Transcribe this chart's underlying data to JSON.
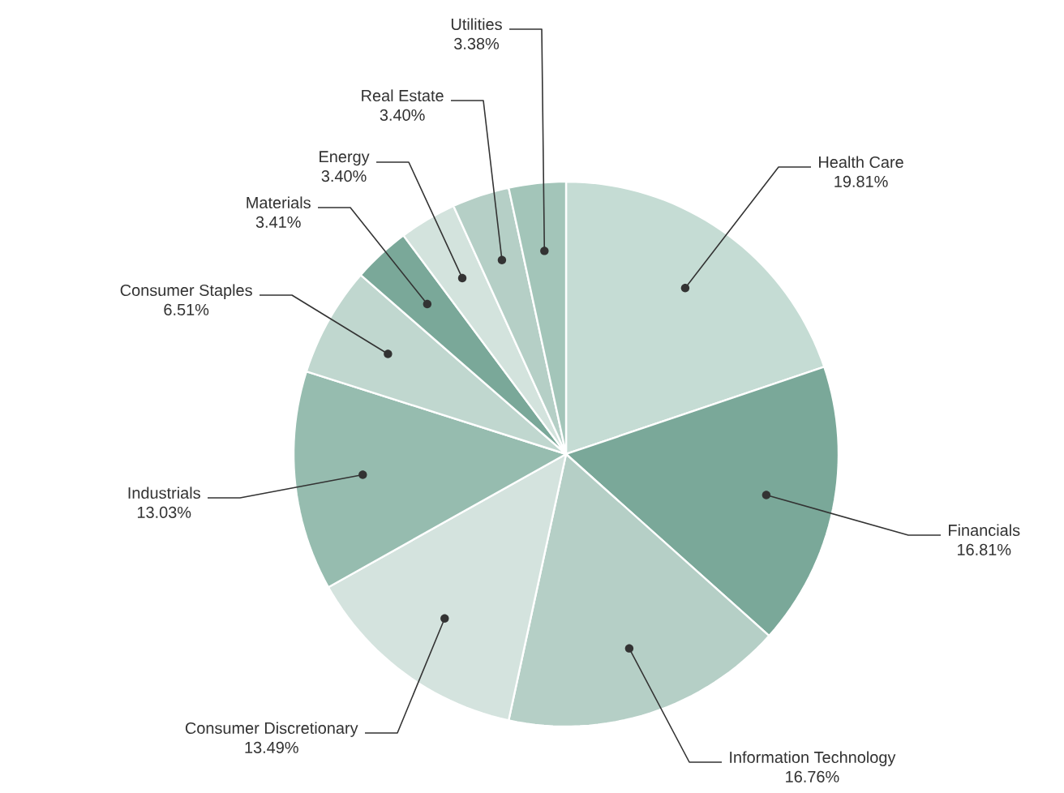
{
  "chart_data": {
    "type": "pie",
    "categories": [
      "Health Care",
      "Financials",
      "Information Technology",
      "Consumer Discretionary",
      "Industrials",
      "Consumer Staples",
      "Materials",
      "Energy",
      "Real Estate",
      "Utilities"
    ],
    "values": [
      19.81,
      16.81,
      16.76,
      13.49,
      13.03,
      6.51,
      3.41,
      3.4,
      3.4,
      3.38
    ],
    "value_labels": [
      "19.81%",
      "16.81%",
      "16.76%",
      "13.49%",
      "13.03%",
      "6.51%",
      "3.41%",
      "3.40%",
      "3.40%",
      "3.38%"
    ],
    "colors": [
      "#c5dcd4",
      "#7aa899",
      "#b5cfc6",
      "#d4e3de",
      "#96bcaf",
      "#c0d7cf",
      "#7aa899",
      "#d3e3dd",
      "#b5cfc6",
      "#a3c5b9"
    ]
  }
}
